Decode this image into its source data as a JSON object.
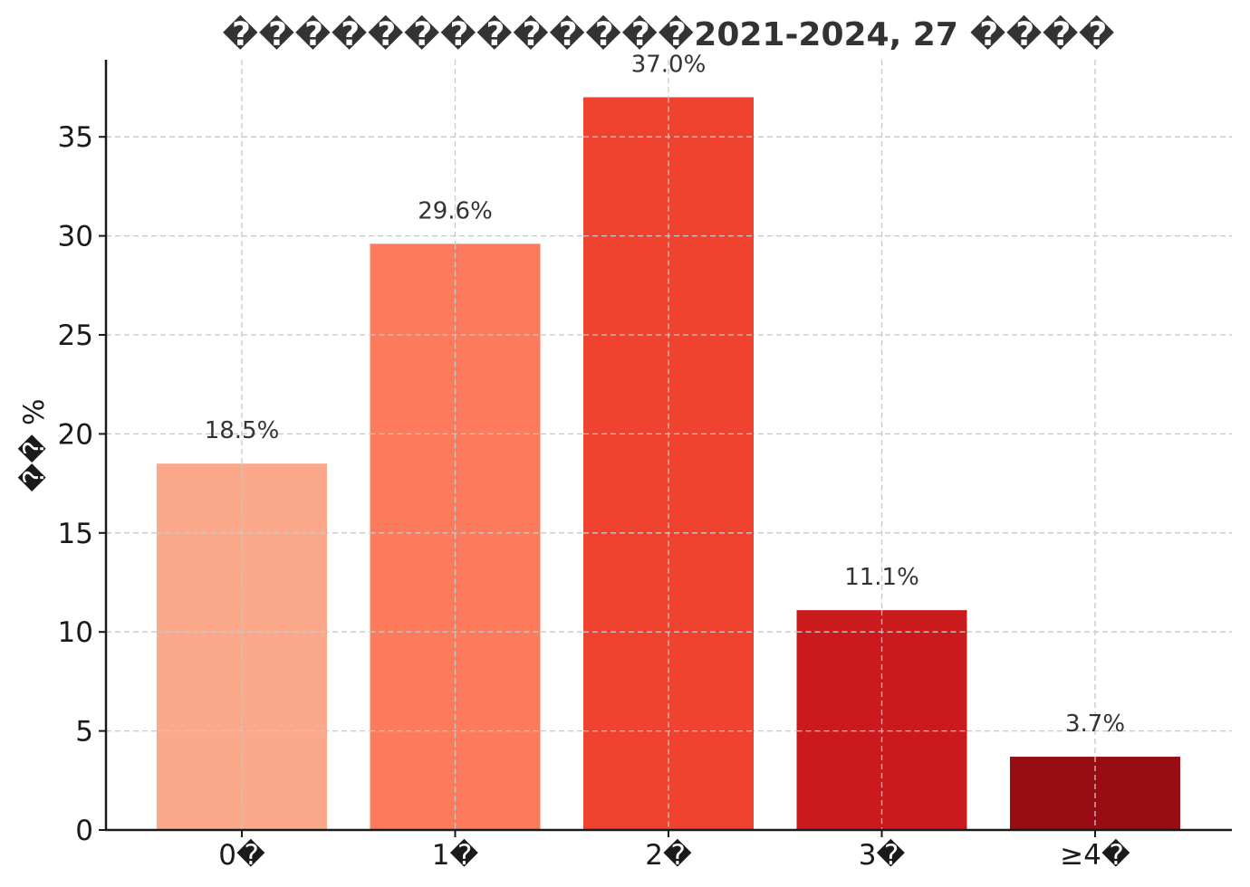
{
  "chart_data": {
    "type": "bar",
    "title": "�������������2021-2024, 27 ����",
    "xlabel": "",
    "ylabel": "�� %",
    "categories": [
      "0�",
      "1�",
      "2�",
      "3�",
      "≥4�"
    ],
    "values": [
      18.5,
      29.6,
      37.0,
      11.1,
      3.7
    ],
    "data_labels": [
      "18.5%",
      "29.6%",
      "37.0%",
      "11.1%",
      "3.7%"
    ],
    "colors": [
      "#fba98a",
      "#fb7b5c",
      "#ef432f",
      "#cb1a1e",
      "#980c14"
    ],
    "yticks": [
      0,
      5,
      10,
      15,
      20,
      25,
      30,
      35
    ],
    "ylim": [
      0,
      38.8
    ],
    "grid": true,
    "legend": "none"
  }
}
